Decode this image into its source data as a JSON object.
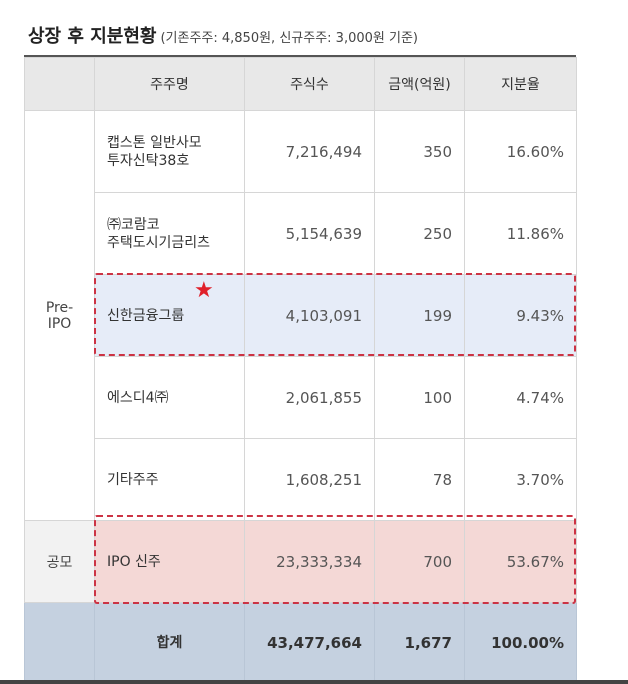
{
  "title": "상장 후 지분현황",
  "subtitle": "(기존주주: 4,850원, 신규주주: 3,000원 기준)",
  "headers": [
    "주주명",
    "주식수",
    "금액(억원)",
    "지분율"
  ],
  "groups": {
    "pre_ipo": "Pre-\nIPO",
    "public": "공모"
  },
  "rows": [
    {
      "name": "캡스톤 일반사모\n투자신탁38호",
      "shares": "7,216,494",
      "amount": "350",
      "ratio": "16.60%"
    },
    {
      "name": "㈜코람코\n주택도시기금리츠",
      "shares": "5,154,639",
      "amount": "250",
      "ratio": "11.86%"
    },
    {
      "name": "신한금융그룹",
      "shares": "4,103,091",
      "amount": "199",
      "ratio": "9.43%"
    },
    {
      "name": "에스디4㈜",
      "shares": "2,061,855",
      "amount": "100",
      "ratio": "4.74%"
    },
    {
      "name": "기타주주",
      "shares": "1,608,251",
      "amount": "78",
      "ratio": "3.70%"
    },
    {
      "name": "IPO 신주",
      "shares": "23,333,334",
      "amount": "700",
      "ratio": "53.67%"
    }
  ],
  "total": {
    "label": "합계",
    "shares": "43,477,664",
    "amount": "1,677",
    "ratio": "100.00%"
  },
  "star_icon": "★"
}
